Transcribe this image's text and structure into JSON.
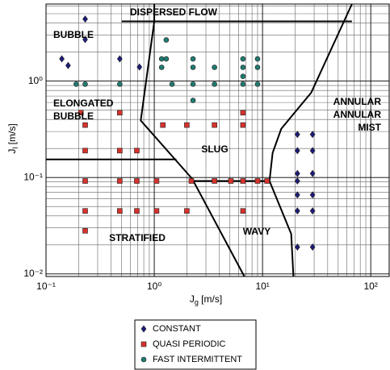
{
  "chart_data": {
    "type": "scatter",
    "xlabel": [
      "J",
      "g",
      " [m/s]"
    ],
    "ylabel": [
      "J",
      "l",
      " [m/s]"
    ],
    "xscale": "log",
    "yscale": "log",
    "xlim": [
      0.1,
      148
    ],
    "ylim": [
      0.0094,
      6.3
    ],
    "xticks": [
      {
        "value": 0.1,
        "label": "10⁻¹"
      },
      {
        "value": 1,
        "label": "10⁰"
      },
      {
        "value": 10,
        "label": "10¹"
      },
      {
        "value": 100,
        "label": "10²"
      }
    ],
    "yticks": [
      {
        "value": 0.01,
        "label": "10⁻²"
      },
      {
        "value": 0.1,
        "label": "10⁻¹"
      },
      {
        "value": 1,
        "label": "10⁰"
      }
    ],
    "xminorticks": [
      0.2,
      0.3,
      0.4,
      0.5,
      0.6,
      0.7,
      0.8,
      0.9,
      2,
      3,
      4,
      5,
      6,
      7,
      8,
      9,
      20,
      30,
      40,
      50,
      60,
      70,
      80,
      90
    ],
    "yminorticks": [
      0.02,
      0.03,
      0.04,
      0.05,
      0.06,
      0.07,
      0.08,
      0.09,
      0.2,
      0.3,
      0.4,
      0.5,
      0.6,
      0.7,
      0.8,
      0.9,
      2,
      3,
      4,
      5,
      6
    ],
    "grid": true,
    "legend": "bottom",
    "series": [
      {
        "name": "CONSTANT",
        "color": "#1c1c78",
        "marker": "diamond",
        "x": [
          0.14,
          0.16,
          0.23,
          0.23,
          0.48,
          0.73,
          21,
          21,
          21,
          21,
          21,
          21,
          21,
          29,
          29,
          29,
          29,
          29,
          29
        ],
        "y": [
          1.7,
          1.45,
          4.4,
          2.7,
          1.7,
          1.4,
          0.28,
          0.19,
          0.11,
          0.092,
          0.066,
          0.045,
          0.019,
          0.28,
          0.19,
          0.11,
          0.066,
          0.045,
          0.019
        ]
      },
      {
        "name": "QUASI PERIODIC",
        "color": "#d8322c",
        "marker": "square",
        "x": [
          0.21,
          0.23,
          0.23,
          0.23,
          0.23,
          0.23,
          0.48,
          0.48,
          0.48,
          0.48,
          0.69,
          0.69,
          0.69,
          1.2,
          1.05,
          1.05,
          2.0,
          2.0,
          2.2,
          3.6,
          3.6,
          5.1,
          6.6,
          6.6,
          6.6,
          6.6,
          9,
          11
        ],
        "y": [
          0.47,
          0.35,
          0.19,
          0.092,
          0.045,
          0.028,
          0.47,
          0.19,
          0.092,
          0.045,
          0.19,
          0.092,
          0.045,
          0.35,
          0.092,
          0.045,
          0.35,
          0.045,
          0.092,
          0.35,
          0.092,
          0.092,
          0.47,
          0.35,
          0.092,
          0.045,
          0.092,
          0.092
        ]
      },
      {
        "name": "FAST INTERMITTENT",
        "color": "#1f7a70",
        "marker": "circle",
        "x": [
          0.19,
          0.23,
          0.48,
          1.17,
          1.17,
          1.29,
          1.29,
          1.46,
          2.28,
          2.28,
          2.28,
          2.28,
          3.6,
          3.6,
          6.6,
          6.6,
          6.6,
          6.6,
          9,
          9,
          9
        ],
        "y": [
          0.93,
          0.93,
          0.93,
          1.7,
          1.39,
          2.67,
          1.7,
          0.93,
          1.7,
          1.39,
          0.93,
          0.63,
          1.39,
          0.93,
          1.7,
          1.39,
          1.12,
          0.93,
          1.7,
          1.39,
          0.93
        ]
      }
    ],
    "boundaries": {
      "color": "#000000",
      "lines": [
        {
          "x": [
            0.5,
            67
          ],
          "y": [
            4.16,
            4.16
          ]
        },
        {
          "x": [
            1.0,
            1.0
          ],
          "y": [
            6.3,
            4.16
          ]
        },
        {
          "x": [
            67,
            28.2,
            14.9,
            12.4,
            11.6,
            18.4,
            19.3
          ],
          "y": [
            6.3,
            0.76,
            0.32,
            0.18,
            0.092,
            0.026,
            0.0094
          ]
        },
        {
          "x": [
            1.0,
            0.75,
            2.24,
            6.8
          ],
          "y": [
            4.16,
            0.39,
            0.097,
            0.0094
          ]
        },
        {
          "x": [
            2.24,
            11.6
          ],
          "y": [
            0.092,
            0.092
          ]
        },
        {
          "x": [
            0.1,
            1.6
          ],
          "y": [
            0.154,
            0.154
          ]
        }
      ]
    },
    "annotations": [
      [
        "DISPERSED FLOW"
      ],
      [
        "BUBBLE"
      ],
      [
        "ELONGATED",
        "BUBBLE"
      ],
      [
        "SLUG"
      ],
      [
        "ANNULAR",
        "ANNULAR",
        "MIST"
      ],
      [
        "STRATIFIED"
      ],
      [
        "WAVY"
      ]
    ]
  }
}
